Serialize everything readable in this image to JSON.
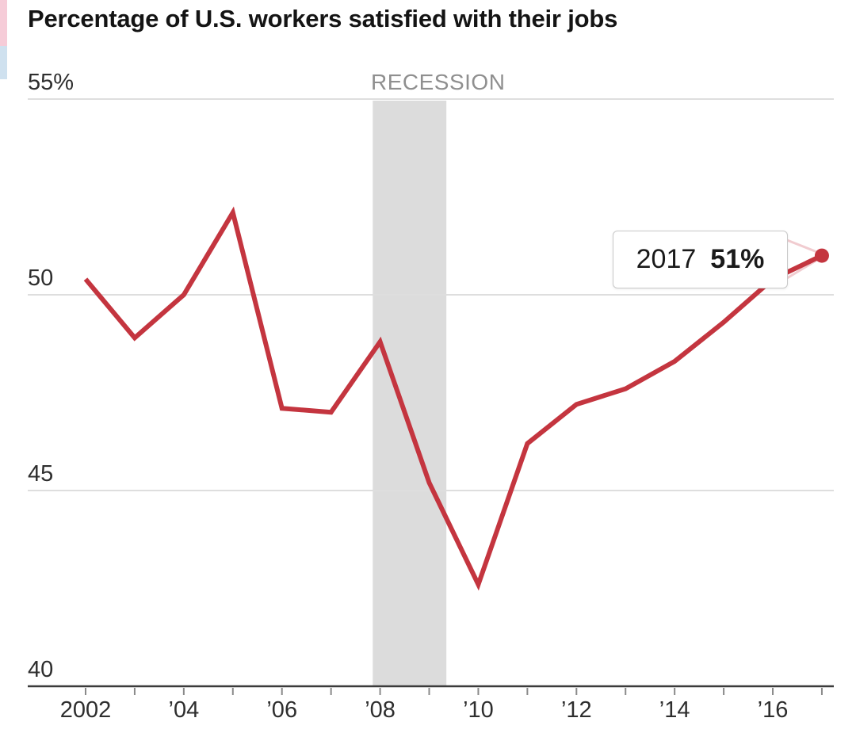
{
  "chart_data": {
    "type": "line",
    "title": "Percentage of U.S. workers satisfied with their jobs",
    "x": [
      2002,
      2003,
      2004,
      2005,
      2006,
      2007,
      2008,
      2009,
      2010,
      2011,
      2012,
      2013,
      2014,
      2015,
      2016,
      2017
    ],
    "values": [
      50.4,
      48.9,
      50.0,
      52.1,
      47.1,
      47.0,
      48.8,
      45.2,
      42.6,
      46.2,
      47.2,
      47.6,
      48.3,
      49.3,
      50.4,
      51.0
    ],
    "ylabel": "",
    "xlabel": "",
    "ylim": [
      40,
      55
    ],
    "grid": true,
    "legend_position": "none",
    "yticks": [
      {
        "value": 55,
        "label": "55%"
      },
      {
        "value": 50,
        "label": "50"
      },
      {
        "value": 45,
        "label": "45"
      },
      {
        "value": 40,
        "label": "40"
      }
    ],
    "xticks": [
      {
        "year": 2002,
        "label": "2002"
      },
      {
        "year": 2004,
        "label": "’04"
      },
      {
        "year": 2006,
        "label": "’06"
      },
      {
        "year": 2008,
        "label": "’08"
      },
      {
        "year": 2010,
        "label": "’10"
      },
      {
        "year": 2012,
        "label": "’12"
      },
      {
        "year": 2014,
        "label": "’14"
      },
      {
        "year": 2016,
        "label": "’16"
      }
    ],
    "recession": {
      "label": "RECESSION",
      "start": 2007.85,
      "end": 2009.35
    },
    "annotation": {
      "year": 2017,
      "value": 51,
      "year_label": "2017",
      "value_label": "51%"
    },
    "colors": {
      "line": "#c4353f",
      "dot": "#c4353f",
      "band": "#dcdcdc",
      "grid": "#dedede",
      "axis": "#3b3b3b",
      "tick": "#8a8a8a",
      "connector": "#f1ccd0"
    }
  }
}
